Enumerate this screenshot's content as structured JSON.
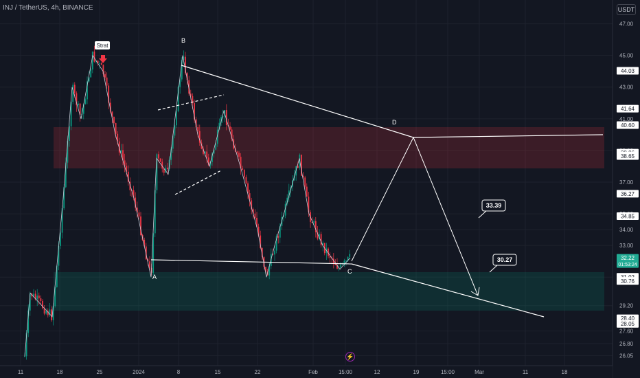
{
  "header": {
    "ticker_label": "INJ / TetherUS, 4h, BINANCE",
    "currency": "USDT"
  },
  "chart_data": {
    "type": "candlestick",
    "symbol": "INJ / TetherUS",
    "interval": "4h",
    "exchange": "BINANCE",
    "ylim": [
      25.5,
      48.5
    ],
    "y_ticks": [
      "47.00",
      "45.00",
      "43.00",
      "41.00",
      "39.00",
      "37.00",
      "35.00",
      "34.00",
      "33.00",
      "31.00",
      "29.20",
      "27.60",
      "26.80",
      "26.05"
    ],
    "x_ticks": [
      "11",
      "18",
      "25",
      "2024",
      "8",
      "15",
      "22",
      "Feb",
      "15:00",
      "12",
      "19",
      "15:00",
      "Mar",
      "11",
      "18"
    ],
    "price_path": [
      {
        "t": "mid-Dec",
        "y": 26.0
      },
      {
        "t": "mid-Dec",
        "y": 30.0
      },
      {
        "t": "Dec 17",
        "y": 28.5
      },
      {
        "t": "Dec 18",
        "y": 36.0
      },
      {
        "t": "Dec 20",
        "y": 43.0
      },
      {
        "t": "Dec 22",
        "y": 41.0
      },
      {
        "t": "Dec 24",
        "y": 45.0
      },
      {
        "t": "Dec 26",
        "y": 44.0
      },
      {
        "t": "Dec 28",
        "y": 40.0
      },
      {
        "t": "Dec 31",
        "y": 36.0
      },
      {
        "t": "Jan 3",
        "y": 31.0
      },
      {
        "t": "Jan 4",
        "y": 38.5
      },
      {
        "t": "Jan 6",
        "y": 37.5
      },
      {
        "t": "Jan 8",
        "y": 45.0
      },
      {
        "t": "Jan 10",
        "y": 40.0
      },
      {
        "t": "Jan 12",
        "y": 38.0
      },
      {
        "t": "Jan 15",
        "y": 41.5
      },
      {
        "t": "Jan 17",
        "y": 38.0
      },
      {
        "t": "Jan 20",
        "y": 34.0
      },
      {
        "t": "Jan 22",
        "y": 31.0
      },
      {
        "t": "Jan 24",
        "y": 33.0
      },
      {
        "t": "Jan 26",
        "y": 36.0
      },
      {
        "t": "Jan 27",
        "y": 38.5
      },
      {
        "t": "Jan 29",
        "y": 35.0
      },
      {
        "t": "Feb 1",
        "y": 33.0
      },
      {
        "t": "Feb 3",
        "y": 31.5
      },
      {
        "t": "Feb 4",
        "y": 32.22
      }
    ],
    "price_badges": [
      {
        "value": "44.03",
        "color": "#ffffff"
      },
      {
        "value": "41.64",
        "color": "#ffffff"
      },
      {
        "value": "40.60",
        "color": "#ffffff"
      },
      {
        "value": "38.86",
        "color": "#ffffff"
      },
      {
        "value": "38.68",
        "color": "#ffffff"
      },
      {
        "value": "38.65",
        "color": "#ffffff"
      },
      {
        "value": "36.27",
        "color": "#ffffff"
      },
      {
        "value": "34.85",
        "color": "#ffffff"
      },
      {
        "value": "32.22",
        "sub": "01:53:24",
        "color": "#22ab94"
      },
      {
        "value": "31.02",
        "color": "#ffffff"
      },
      {
        "value": "30.76",
        "color": "#ffffff"
      },
      {
        "value": "30.76",
        "color": "#ffffff"
      },
      {
        "value": "28.40",
        "color": "#ffffff"
      },
      {
        "value": "28.05",
        "color": "#ffffff"
      }
    ],
    "zones": [
      {
        "name": "resistance",
        "from": 36.5,
        "to": 38.8,
        "color": "#f23645"
      },
      {
        "name": "support",
        "from": 28.3,
        "to": 30.8,
        "color": "#089981"
      }
    ],
    "points": {
      "A": "A",
      "B": "B",
      "C": "C",
      "D": "D"
    },
    "annotations": {
      "strat": "Strat",
      "target1": "33.39",
      "target2": "30.27"
    }
  }
}
